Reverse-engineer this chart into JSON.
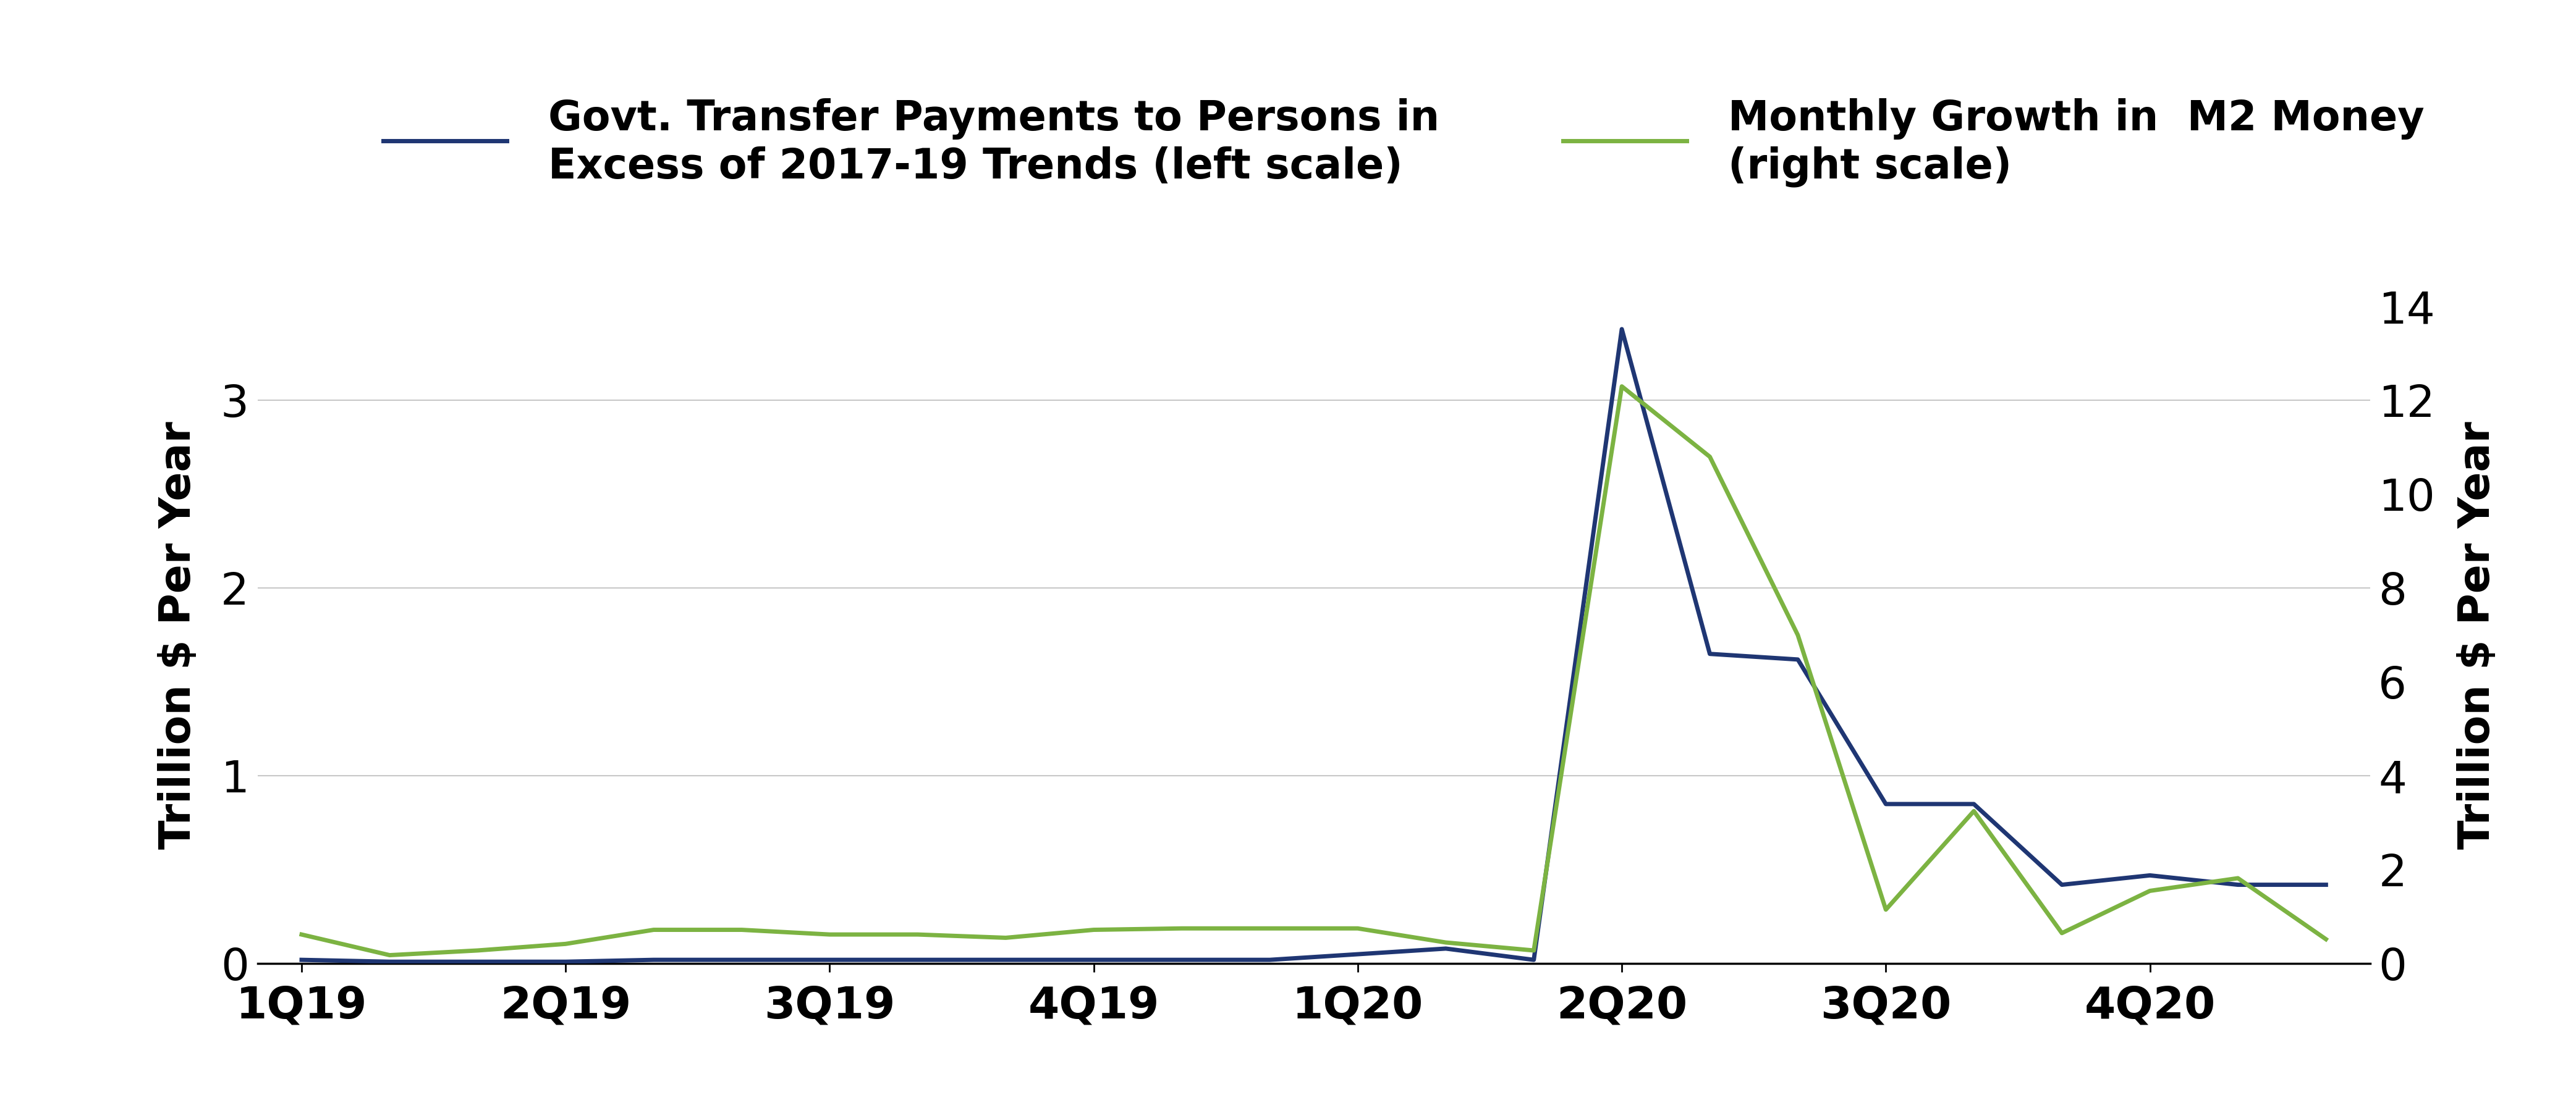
{
  "blue_label": "Govt. Transfer Payments to Persons in\nExcess of 2017-19 Trends (left scale)",
  "green_label": "Monthly Growth in  M2 Money\n(right scale)",
  "left_ylabel": "Trillion $ Per Year",
  "right_ylabel": "Trillion $ Per Year",
  "ylim_left": [
    0,
    3.5
  ],
  "ylim_right": [
    0,
    14
  ],
  "yticks_left": [
    0,
    1,
    2,
    3
  ],
  "yticks_right": [
    0,
    2,
    4,
    6,
    8,
    10,
    12,
    14
  ],
  "blue_color": "#1f3673",
  "green_color": "#7cb342",
  "line_width": 5.0,
  "x_tick_labels_main": [
    "1Q19",
    "2Q19",
    "3Q19",
    "4Q19",
    "1Q20",
    "2Q20",
    "3Q20",
    "4Q20"
  ],
  "blue_y": [
    0.02,
    0.01,
    0.01,
    0.01,
    0.02,
    0.02,
    0.02,
    0.02,
    0.02,
    0.02,
    0.02,
    0.02,
    0.05,
    0.08,
    0.02,
    3.38,
    1.65,
    1.62,
    0.85,
    0.85,
    0.42,
    0.47,
    0.42,
    0.42
  ],
  "green_y_raw": [
    0.62,
    0.18,
    0.28,
    0.42,
    0.72,
    0.72,
    0.62,
    0.62,
    0.55,
    0.72,
    0.75,
    0.75,
    0.75,
    0.45,
    0.28,
    12.3,
    10.8,
    7.0,
    1.15,
    3.25,
    0.65,
    1.55,
    1.82,
    0.52
  ],
  "n_points": 24,
  "background_color": "#ffffff",
  "grid_color": "#c8c8c8",
  "fontsize_ticks": 52,
  "fontsize_label": 50,
  "fontsize_legend": 48
}
